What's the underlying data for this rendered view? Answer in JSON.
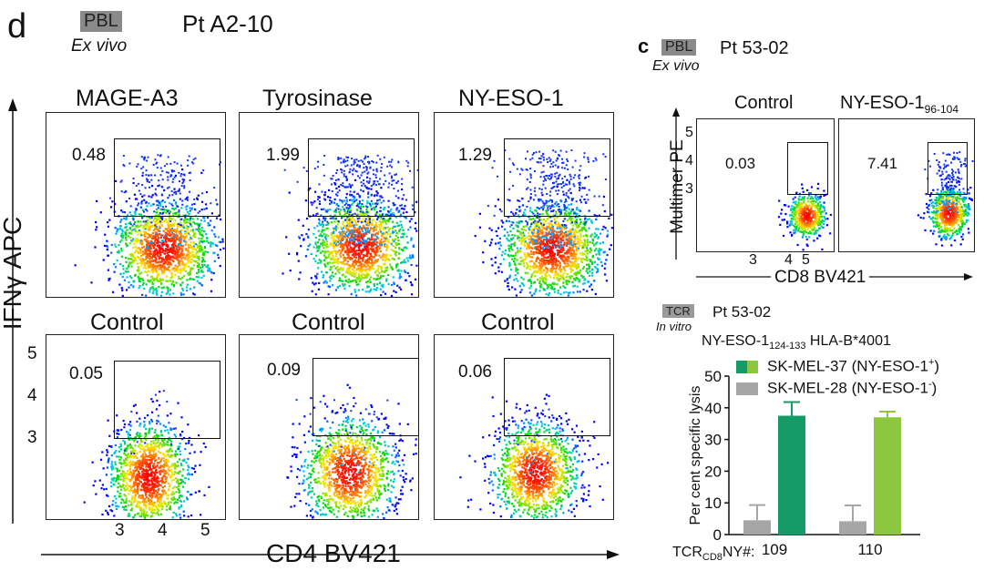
{
  "panel_d": {
    "letter": "d",
    "tag": "PBL",
    "patient": "Pt  A2-10",
    "condition": "Ex vivo",
    "y_axis_label": "IFNγ APC",
    "x_axis_label": "CD4 BV421",
    "y_ticks": [
      "5",
      "4",
      "3"
    ],
    "x_ticks": [
      "3",
      "4",
      "5"
    ],
    "top_titles": [
      "MAGE-A3",
      "Tyrosinase",
      "NY-ESO-1"
    ],
    "top_percents": [
      "0.48",
      "1.99",
      "1.29"
    ],
    "bottom_titles": [
      "Control",
      "Control",
      "Control"
    ],
    "bottom_percents": [
      "0.05",
      "0.09",
      "0.06"
    ]
  },
  "panel_c": {
    "letter": "c",
    "tag": "PBL",
    "patient": "Pt  53-02",
    "condition": "Ex vivo",
    "titles": [
      "Control",
      "NY-ESO-1"
    ],
    "title_subscript": "96-104",
    "percents": [
      "0.03",
      "7.41"
    ],
    "y_axis_label": "Multimer PE",
    "x_axis_label": "CD8 BV421",
    "y_ticks": [
      "5",
      "4",
      "3"
    ],
    "x_ticks": [
      "3",
      "4",
      "5"
    ]
  },
  "bar_panel": {
    "tag": "TCR",
    "patient": "Pt  53-02",
    "condition": "In vitro",
    "epitope": "NY-ESO-1",
    "epitope_subscript": "124-133",
    "hla": " HLA-B*4001",
    "legend": [
      {
        "label": "SK-MEL-37 (NY-ESO-1",
        "sup": "+",
        "tail": ")"
      },
      {
        "label": "SK-MEL-28  (NY-ESO-1",
        "sup": "-",
        "tail": ")"
      }
    ],
    "x_prefix": "TCR",
    "x_prefix_subscript": "CD8",
    "x_prefix_tail": "NY#:",
    "colors": {
      "sk_mel_37_tcr109": "#149b68",
      "sk_mel_37_tcr110": "#8dc63f",
      "sk_mel_28": "#a6a6a6"
    }
  },
  "chart_data": [
    {
      "type": "bar",
      "categories": [
        "109",
        "110"
      ],
      "series": [
        {
          "name": "SK-MEL-28  (NY-ESO-1-)",
          "values": [
            4.5,
            4.2
          ],
          "errors": [
            4.8,
            5.0
          ]
        },
        {
          "name": "SK-MEL-37 (NY-ESO-1+)",
          "values": [
            37.5,
            37
          ],
          "errors": [
            4.3,
            1.8
          ]
        }
      ],
      "xlabel": "TCRCD8NY#:",
      "ylabel": "Per cent specific lysis",
      "ylim": [
        0,
        50
      ],
      "yticks": [
        0,
        10,
        20,
        30,
        40,
        50
      ]
    }
  ]
}
